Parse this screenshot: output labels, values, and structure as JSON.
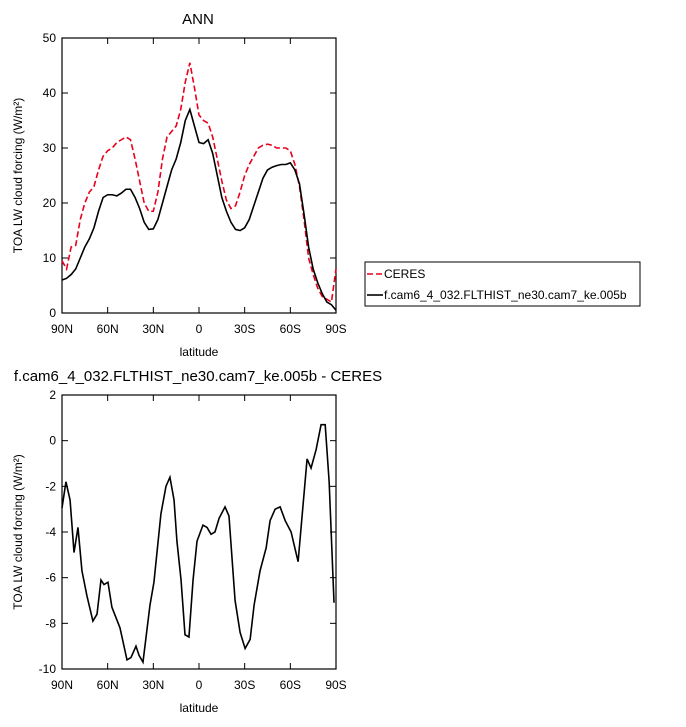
{
  "chart_data": [
    {
      "type": "line",
      "title": "ANN",
      "xlabel": "latitude",
      "ylabel": "TOA LW cloud forcing (W/m²)",
      "xlim": [
        90,
        -90
      ],
      "ylim": [
        0,
        50
      ],
      "xticks": [
        {
          "value": 90,
          "label": "90N"
        },
        {
          "value": 60,
          "label": "60N"
        },
        {
          "value": 30,
          "label": "30N"
        },
        0,
        {
          "value": -30,
          "label": "30S"
        },
        {
          "value": -60,
          "label": "60S"
        },
        {
          "value": -90,
          "label": "90S"
        }
      ],
      "yticks": [
        0,
        10,
        20,
        30,
        40,
        50
      ],
      "legend": "right",
      "x": [
        90,
        87,
        84,
        81,
        78,
        75,
        72,
        69,
        66,
        63,
        60,
        57,
        54,
        51,
        48,
        45,
        42,
        39,
        36,
        33,
        30,
        27,
        24,
        21,
        18,
        15,
        12,
        9,
        6,
        3,
        0,
        -3,
        -6,
        -9,
        -12,
        -15,
        -18,
        -21,
        -24,
        -27,
        -30,
        -33,
        -36,
        -39,
        -42,
        -45,
        -48,
        -51,
        -54,
        -57,
        -60,
        -63,
        -66,
        -69,
        -72,
        -75,
        -78,
        -81,
        -84,
        -87,
        -90
      ],
      "series": [
        {
          "name": "CERES",
          "color": "#e8001c",
          "dash": "dashed",
          "values": [
            9.5,
            8,
            12,
            12.3,
            17,
            20,
            22,
            23,
            26,
            28.5,
            29.5,
            30,
            31,
            31.5,
            32,
            31.5,
            28,
            24,
            20,
            18.5,
            18.5,
            22,
            28,
            32,
            33,
            34,
            37,
            42,
            45.5,
            41,
            36,
            35,
            34.5,
            32,
            28,
            24,
            20.5,
            19,
            19.5,
            22,
            25,
            27,
            28.5,
            30,
            30.5,
            30.7,
            30.5,
            30,
            30,
            30,
            29.5,
            27,
            23,
            17,
            10,
            7,
            4.5,
            3,
            2.5,
            2,
            8
          ]
        },
        {
          "name": "f.cam6_4_032.FLTHIST_ne30.cam7_ke.005b",
          "color": "#000000",
          "dash": "solid",
          "values": [
            6,
            6.3,
            7,
            8,
            10,
            12,
            13.5,
            15.5,
            18.5,
            21,
            21.5,
            21.5,
            21.3,
            21.8,
            22.5,
            22.5,
            21,
            19,
            16.5,
            15.2,
            15.3,
            17,
            20,
            23,
            26,
            28,
            31,
            35,
            37,
            34,
            31,
            30.8,
            31.5,
            29,
            25,
            21,
            18.5,
            16.5,
            15.2,
            15,
            15.5,
            17,
            19.5,
            22,
            24.5,
            26,
            26.5,
            26.8,
            27,
            27,
            27.3,
            26,
            23.5,
            18,
            12,
            8,
            5.5,
            3.5,
            2,
            1.5,
            0.5
          ]
        }
      ]
    },
    {
      "type": "line",
      "title": "f.cam6_4_032.FLTHIST_ne30.cam7_ke.005b - CERES",
      "xlabel": "latitude",
      "ylabel": "TOA LW cloud forcing (W/m²)",
      "xlim": [
        90,
        -90
      ],
      "ylim": [
        -10,
        2
      ],
      "xticks": [
        {
          "value": 90,
          "label": "90N"
        },
        {
          "value": 60,
          "label": "60N"
        },
        {
          "value": 30,
          "label": "30N"
        },
        0,
        {
          "value": -30,
          "label": "30S"
        },
        {
          "value": -60,
          "label": "60S"
        },
        {
          "value": -90,
          "label": "90S"
        }
      ],
      "yticks": [
        -10,
        -8,
        -6,
        -4,
        -2,
        0,
        2
      ],
      "x": [
        90,
        87.4,
        84.7,
        82.1,
        79.5,
        76.9,
        73.6,
        69.7,
        67,
        64.4,
        62.4,
        59.8,
        57.2,
        51.9,
        47.3,
        44.7,
        41.4,
        39.4,
        36.8,
        32.2,
        29.6,
        25,
        21.7,
        19.1,
        16.4,
        14.5,
        11.8,
        9.2,
        6.6,
        3.9,
        1.3,
        -2.6,
        -5.3,
        -7.9,
        -10.5,
        -13.2,
        -17.1,
        -19.7,
        -23.7,
        -27,
        -30.3,
        -33.6,
        -36.2,
        -40.1,
        -44.1,
        -46.7,
        -50,
        -53.3,
        -56.6,
        -60.5,
        -65.1,
        -71,
        -73.6,
        -76.9,
        -80.2,
        -82.9,
        -85.5,
        -88.7
      ],
      "series": [
        {
          "color": "#000000",
          "dash": "solid",
          "values": [
            -2.95,
            -1.8,
            -2.6,
            -4.9,
            -3.8,
            -5.7,
            -6.8,
            -7.9,
            -7.6,
            -6.1,
            -6.3,
            -6.2,
            -7.3,
            -8.2,
            -9.6,
            -9.5,
            -9,
            -9.4,
            -9.7,
            -7.2,
            -6.2,
            -3.2,
            -2,
            -1.6,
            -2.6,
            -4.4,
            -6.1,
            -8.5,
            -8.6,
            -6.1,
            -4.4,
            -3.7,
            -3.8,
            -4.1,
            -4,
            -3.4,
            -2.9,
            -3.3,
            -7,
            -8.4,
            -9.1,
            -8.7,
            -7.2,
            -5.7,
            -4.7,
            -3.5,
            -3,
            -2.9,
            -3.5,
            -4,
            -5.3,
            -0.8,
            -1.2,
            -0.4,
            0.7,
            0.7,
            -1.8,
            -7.1
          ]
        }
      ]
    }
  ]
}
